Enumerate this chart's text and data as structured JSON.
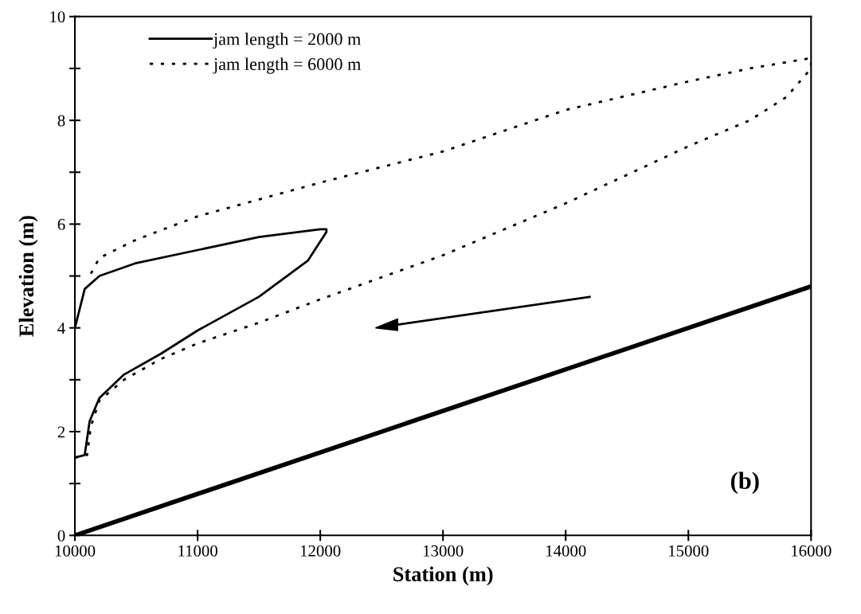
{
  "chart_data": {
    "type": "line",
    "xlabel": "Station (m)",
    "ylabel": "Elevation (m)",
    "xlim": [
      10000,
      16000
    ],
    "xticks": [
      10000,
      11000,
      12000,
      13000,
      14000,
      15000,
      16000
    ],
    "ylim": [
      0,
      10
    ],
    "yticks": [
      0,
      {
        "value": 1,
        "label": null
      },
      2,
      {
        "value": 3,
        "label": null
      },
      4,
      {
        "value": 5,
        "label": null
      },
      6,
      {
        "value": 7,
        "label": null
      },
      8,
      {
        "value": 9,
        "label": null
      },
      10
    ],
    "grid": false,
    "legend": "top left",
    "series": [
      {
        "name": "jam length = 2000 m",
        "color": "#000000",
        "line_style": "solid",
        "x": [
          10000,
          10080,
          10120,
          10200,
          10400,
          10700,
          11000,
          11500,
          11900,
          12050,
          12050,
          12000,
          11500,
          11000,
          10500,
          10200,
          10080,
          10000
        ],
        "values": [
          1.5,
          1.55,
          2.2,
          2.65,
          3.1,
          3.5,
          3.95,
          4.6,
          5.3,
          5.85,
          5.9,
          5.9,
          5.75,
          5.5,
          5.25,
          5.0,
          4.75,
          4.0
        ]
      },
      {
        "name": "jam length = 6000 m",
        "color": "#000000",
        "line_style": "dotted",
        "x": [
          10000,
          10100,
          10130,
          10200,
          10400,
          10700,
          11000,
          11500,
          12000,
          13000,
          14000,
          15000,
          15500,
          15800,
          16000,
          16000,
          15500,
          15000,
          14000,
          13000,
          12000,
          11000,
          10500,
          10200,
          10120
        ],
        "values": [
          1.5,
          1.55,
          2.1,
          2.6,
          3.0,
          3.4,
          3.7,
          4.1,
          4.55,
          5.4,
          6.4,
          7.5,
          8.0,
          8.45,
          9.0,
          9.2,
          9.0,
          8.75,
          8.2,
          7.4,
          6.8,
          6.15,
          5.7,
          5.35,
          5.0
        ]
      },
      {
        "color": "#000000",
        "line_style": "solid",
        "x": [
          10000,
          16000
        ],
        "values": [
          0,
          4.8
        ]
      }
    ],
    "annotations": [
      "(b)"
    ]
  }
}
